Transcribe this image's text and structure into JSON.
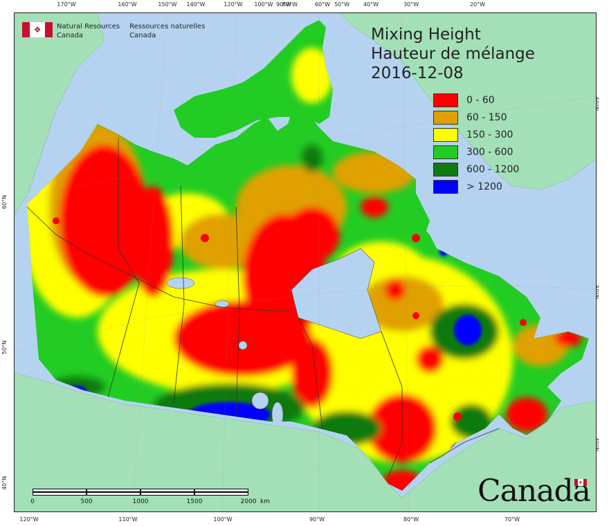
{
  "title": {
    "line1": "Mixing Height",
    "line2": "Hauteur de mélange",
    "date": "2016-12-08"
  },
  "agency": {
    "en_line1": "Natural Resources",
    "en_line2": "Canada",
    "fr_line1": "Ressources naturelles",
    "fr_line2": "Canada"
  },
  "wordmark": "Canada",
  "legend": [
    {
      "label": "0 - 60",
      "color": "#ff0000"
    },
    {
      "label": "60 - 150",
      "color": "#e0a000"
    },
    {
      "label": "150 - 300",
      "color": "#ffff00"
    },
    {
      "label": "300 - 600",
      "color": "#22cc22"
    },
    {
      "label": "600 - 1200",
      "color": "#117a11"
    },
    {
      "label": "> 1200",
      "color": "#0000ff"
    }
  ],
  "scale": {
    "labels": [
      "0",
      "500",
      "1000",
      "1500",
      "2000"
    ],
    "unit": "km"
  },
  "graticule": {
    "top": [
      "170°W",
      "160°W",
      "150°W",
      "140°W",
      "120°W",
      "100°W",
      "90°W",
      "80°W",
      "60°W",
      "50°W",
      "40°W",
      "30°W",
      "20°W"
    ],
    "bottom": [
      "120°W",
      "110°W",
      "100°W",
      "90°W",
      "80°W",
      "70°W"
    ],
    "left": [
      "60°N",
      "50°N",
      "40°N"
    ],
    "right": [
      "60°N",
      "50°N",
      "40°N"
    ]
  },
  "colors": {
    "ocean": "#b5d3f0",
    "land_outside": "#a3e0b8",
    "border": "#333333",
    "flag_red": "#c8102e"
  }
}
